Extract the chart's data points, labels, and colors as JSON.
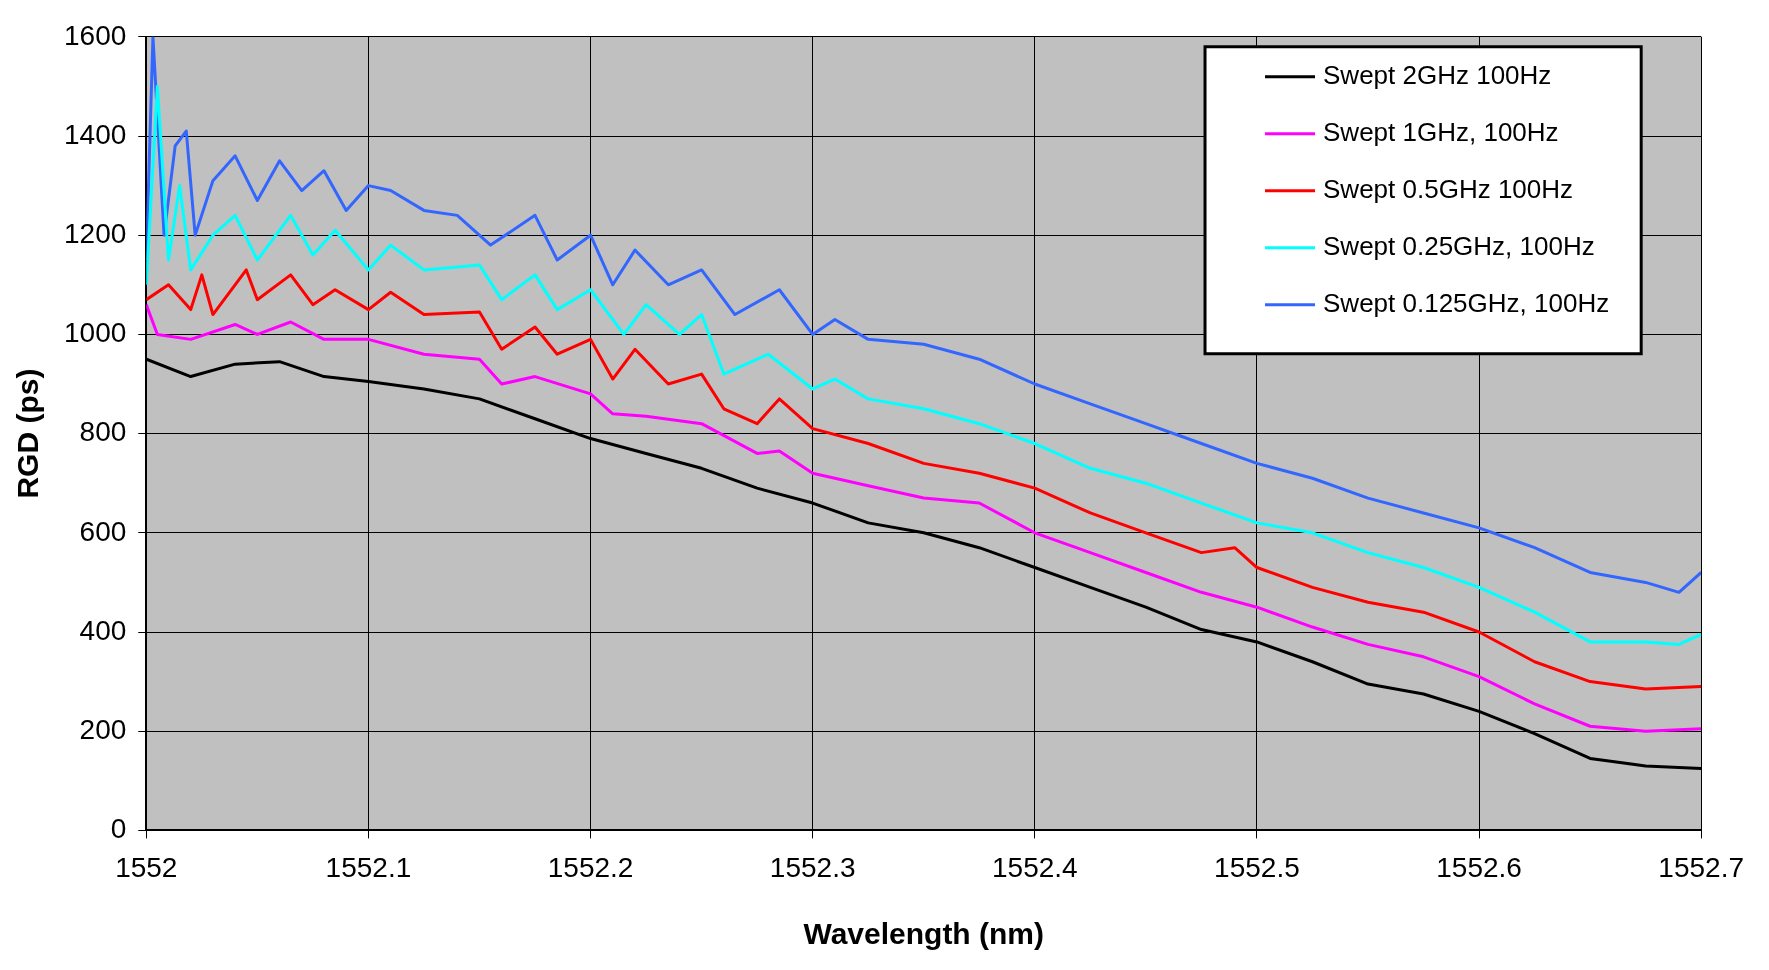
{
  "chart_data": {
    "type": "line",
    "xlabel": "Wavelength (nm)",
    "ylabel": "RGD (ps)",
    "xlim": [
      1552,
      1552.7
    ],
    "xticks": [
      1552,
      1552.1,
      1552.2,
      1552.3,
      1552.4,
      1552.5,
      1552.6,
      1552.7
    ],
    "ylim": [
      0,
      1600
    ],
    "yticks": [
      0,
      200,
      400,
      600,
      800,
      1000,
      1200,
      1400,
      1600
    ],
    "grid": true,
    "legend": "top right",
    "marker": "none",
    "line_style": "solid",
    "series": [
      {
        "name": "Swept 2GHz 100Hz",
        "color": "#000000",
        "x": [
          1552,
          1552.02,
          1552.04,
          1552.06,
          1552.08,
          1552.1,
          1552.125,
          1552.15,
          1552.175,
          1552.2,
          1552.225,
          1552.25,
          1552.275,
          1552.3,
          1552.325,
          1552.35,
          1552.375,
          1552.4,
          1552.425,
          1552.45,
          1552.475,
          1552.5,
          1552.525,
          1552.55,
          1552.575,
          1552.6,
          1552.625,
          1552.65,
          1552.675,
          1552.7
        ],
        "values": [
          950,
          915,
          940,
          945,
          915,
          905,
          890,
          870,
          830,
          790,
          760,
          730,
          690,
          660,
          620,
          600,
          570,
          530,
          490,
          450,
          405,
          380,
          340,
          295,
          275,
          240,
          195,
          145,
          130,
          125
        ]
      },
      {
        "name": "Swept 1GHz, 100Hz",
        "color": "#ff00ff",
        "x": [
          1552,
          1552.005,
          1552.02,
          1552.04,
          1552.05,
          1552.065,
          1552.08,
          1552.1,
          1552.125,
          1552.15,
          1552.16,
          1552.175,
          1552.2,
          1552.21,
          1552.225,
          1552.25,
          1552.275,
          1552.285,
          1552.3,
          1552.325,
          1552.35,
          1552.375,
          1552.4,
          1552.425,
          1552.45,
          1552.475,
          1552.5,
          1552.525,
          1552.55,
          1552.575,
          1552.6,
          1552.625,
          1552.65,
          1552.675,
          1552.7
        ],
        "values": [
          1060,
          1000,
          990,
          1020,
          1000,
          1025,
          990,
          990,
          960,
          950,
          900,
          915,
          880,
          840,
          835,
          820,
          760,
          765,
          720,
          695,
          670,
          660,
          600,
          560,
          520,
          480,
          450,
          410,
          375,
          350,
          310,
          255,
          210,
          200,
          205
        ]
      },
      {
        "name": "Swept 0.5GHz 100Hz",
        "color": "#ff0000",
        "x": [
          1552,
          1552.01,
          1552.02,
          1552.025,
          1552.03,
          1552.045,
          1552.05,
          1552.065,
          1552.075,
          1552.085,
          1552.1,
          1552.11,
          1552.125,
          1552.15,
          1552.16,
          1552.175,
          1552.185,
          1552.2,
          1552.21,
          1552.22,
          1552.235,
          1552.25,
          1552.26,
          1552.275,
          1552.285,
          1552.3,
          1552.325,
          1552.35,
          1552.375,
          1552.4,
          1552.425,
          1552.45,
          1552.475,
          1552.49,
          1552.5,
          1552.525,
          1552.55,
          1552.575,
          1552.6,
          1552.625,
          1552.65,
          1552.675,
          1552.7
        ],
        "values": [
          1070,
          1100,
          1050,
          1120,
          1040,
          1130,
          1070,
          1120,
          1060,
          1090,
          1050,
          1085,
          1040,
          1045,
          970,
          1015,
          960,
          990,
          910,
          970,
          900,
          920,
          850,
          820,
          870,
          810,
          780,
          740,
          720,
          690,
          640,
          600,
          560,
          570,
          530,
          490,
          460,
          440,
          400,
          340,
          300,
          285,
          290
        ]
      },
      {
        "name": "Swept 0.25GHz, 100Hz",
        "color": "#00ffff",
        "x": [
          1552,
          1552.005,
          1552.01,
          1552.015,
          1552.02,
          1552.03,
          1552.04,
          1552.05,
          1552.065,
          1552.075,
          1552.085,
          1552.1,
          1552.11,
          1552.125,
          1552.15,
          1552.16,
          1552.175,
          1552.185,
          1552.2,
          1552.215,
          1552.225,
          1552.24,
          1552.25,
          1552.26,
          1552.28,
          1552.3,
          1552.31,
          1552.325,
          1552.35,
          1552.375,
          1552.4,
          1552.425,
          1552.45,
          1552.475,
          1552.5,
          1552.525,
          1552.55,
          1552.575,
          1552.6,
          1552.625,
          1552.65,
          1552.675,
          1552.69,
          1552.7
        ],
        "values": [
          1100,
          1500,
          1150,
          1300,
          1130,
          1200,
          1240,
          1150,
          1240,
          1160,
          1210,
          1130,
          1180,
          1130,
          1140,
          1070,
          1120,
          1050,
          1090,
          1000,
          1060,
          1000,
          1040,
          920,
          960,
          890,
          910,
          870,
          850,
          820,
          780,
          730,
          700,
          660,
          620,
          600,
          560,
          530,
          490,
          440,
          380,
          380,
          375,
          395
        ]
      },
      {
        "name": "Swept 0.125GHz, 100Hz",
        "color": "#3366ff",
        "x": [
          1552,
          1552.003,
          1552.008,
          1552.013,
          1552.018,
          1552.022,
          1552.03,
          1552.04,
          1552.05,
          1552.06,
          1552.07,
          1552.08,
          1552.09,
          1552.1,
          1552.11,
          1552.125,
          1552.14,
          1552.155,
          1552.175,
          1552.185,
          1552.2,
          1552.21,
          1552.22,
          1552.235,
          1552.25,
          1552.265,
          1552.285,
          1552.3,
          1552.31,
          1552.325,
          1552.35,
          1552.375,
          1552.4,
          1552.425,
          1552.45,
          1552.475,
          1552.5,
          1552.525,
          1552.55,
          1552.575,
          1552.6,
          1552.625,
          1552.65,
          1552.675,
          1552.69,
          1552.7
        ],
        "values": [
          1150,
          1600,
          1200,
          1380,
          1410,
          1200,
          1310,
          1360,
          1270,
          1350,
          1290,
          1330,
          1250,
          1300,
          1290,
          1250,
          1240,
          1180,
          1240,
          1150,
          1200,
          1100,
          1170,
          1100,
          1130,
          1040,
          1090,
          1000,
          1030,
          990,
          980,
          950,
          900,
          860,
          820,
          780,
          740,
          710,
          670,
          640,
          610,
          570,
          520,
          500,
          480,
          520
        ]
      }
    ]
  }
}
